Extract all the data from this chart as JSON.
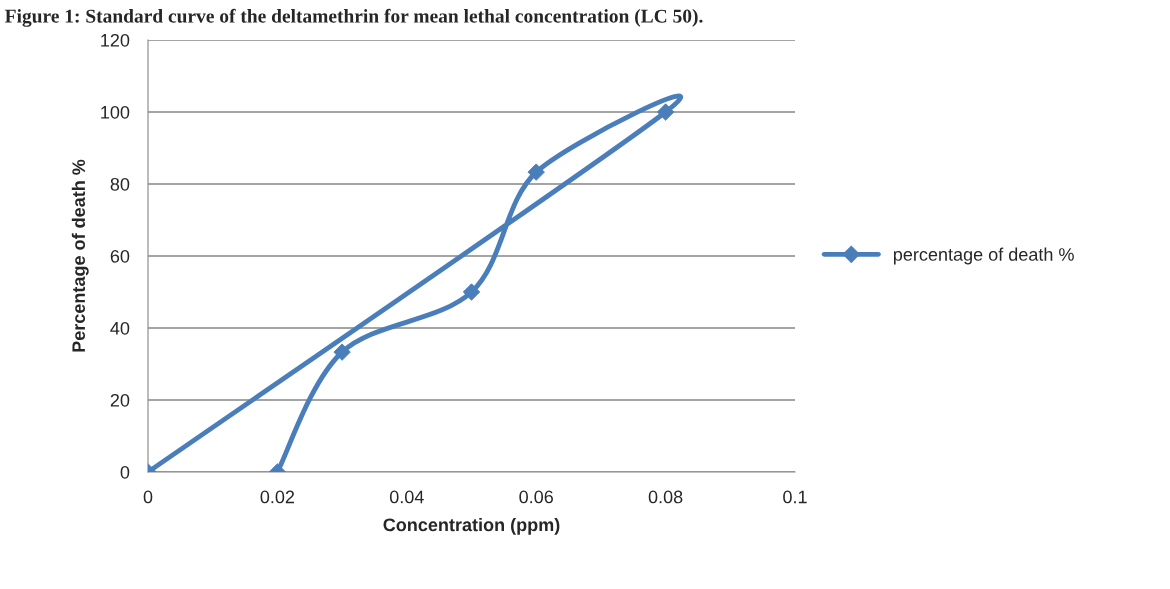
{
  "chart_data": {
    "type": "line",
    "title": "Figure 1: Standard curve of the deltamethrin for mean lethal concentration (LC 50).",
    "xlabel": "Concentration (ppm)",
    "ylabel": "Percentage of death %",
    "series": [
      {
        "name": "percentage of death %",
        "color": "#4a7ebb",
        "x": [
          0.02,
          0.03,
          0.05,
          0.06,
          0.08,
          0
        ],
        "values": [
          0,
          33.3,
          50,
          83.3,
          100,
          0
        ]
      }
    ],
    "xlim": [
      0,
      0.1
    ],
    "xticks": [
      0,
      0.02,
      0.04,
      0.06,
      0.08,
      0.1
    ],
    "ylim": [
      0,
      120
    ],
    "yticks": [
      0,
      20,
      40,
      60,
      80,
      100,
      120
    ],
    "grid": "y",
    "legend": "right",
    "marker": "diamond",
    "line_style": "solid"
  }
}
